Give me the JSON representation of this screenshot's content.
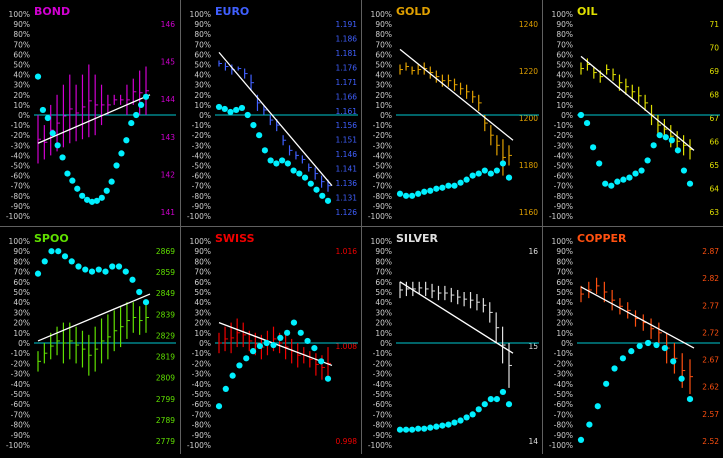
{
  "pct_ticks": [
    "100%",
    "90%",
    "80%",
    "70%",
    "60%",
    "50%",
    "40%",
    "30%",
    "20%",
    "10%",
    "0%",
    "-10%",
    "-20%",
    "-30%",
    "-40%",
    "-50%",
    "-60%",
    "-70%",
    "-80%",
    "-90%",
    "-100%"
  ],
  "colors": {
    "background": "#000000",
    "zero_line": "#00c8d0",
    "markers": "#00f0ff",
    "trend_line": "#ffffff",
    "left_axis_text": "#cfcfcf",
    "divider": "#606060"
  },
  "chart_data": [
    {
      "type": "line",
      "title": "BOND",
      "color": "#d000d0",
      "price_ticks": [
        "146",
        "145",
        "144",
        "143",
        "142",
        "141"
      ],
      "ylim": [
        -100,
        100
      ],
      "ticks": [
        [
          0.74,
          0.5
        ],
        [
          0.72,
          0.55
        ],
        [
          0.7,
          0.45
        ],
        [
          0.68,
          0.4
        ],
        [
          0.66,
          0.35
        ],
        [
          0.64,
          0.3
        ],
        [
          0.63,
          0.35
        ],
        [
          0.62,
          0.3
        ],
        [
          0.61,
          0.25
        ],
        [
          0.6,
          0.3
        ],
        [
          0.55,
          0.35
        ],
        [
          0.5,
          0.4
        ],
        [
          0.45,
          0.4
        ],
        [
          0.4,
          0.45
        ],
        [
          0.35,
          0.5
        ],
        [
          0.32,
          0.45
        ],
        [
          0.28,
          0.5
        ],
        [
          0.26,
          0.5
        ]
      ],
      "pct_values": [
        38,
        5,
        -3,
        -18,
        -30,
        -42,
        -58,
        -65,
        -73,
        -80,
        -84,
        -86,
        -85,
        -82,
        -75,
        -66,
        -50,
        -38,
        -25,
        -8,
        0,
        10,
        18
      ],
      "trend": [
        -28,
        20
      ]
    },
    {
      "type": "line",
      "title": "EURO",
      "color": "#4060ff",
      "price_ticks": [
        "1.191",
        "1.186",
        "1.181",
        "1.176",
        "1.171",
        "1.166",
        "1.161",
        "1.156",
        "1.151",
        "1.146",
        "1.141",
        "1.136",
        "1.131",
        "1.126"
      ],
      "ylim": [
        -100,
        100
      ],
      "ticks": [
        [
          0.23,
          0.26
        ],
        [
          0.24,
          0.28
        ],
        [
          0.25,
          0.3
        ],
        [
          0.26,
          0.28
        ],
        [
          0.27,
          0.32
        ],
        [
          0.3,
          0.38
        ],
        [
          0.4,
          0.48
        ],
        [
          0.45,
          0.5
        ],
        [
          0.5,
          0.55
        ],
        [
          0.52,
          0.58
        ],
        [
          0.6,
          0.65
        ],
        [
          0.65,
          0.7
        ],
        [
          0.68,
          0.72
        ],
        [
          0.7,
          0.74
        ],
        [
          0.74,
          0.78
        ],
        [
          0.76,
          0.82
        ],
        [
          0.8,
          0.86
        ],
        [
          0.82,
          0.88
        ]
      ],
      "pct_values": [
        8,
        6,
        3,
        5,
        7,
        0,
        -10,
        -20,
        -35,
        -45,
        -48,
        -45,
        -48,
        -55,
        -58,
        -62,
        -68,
        -74,
        -80,
        -85
      ],
      "trend": [
        62,
        -70
      ]
    },
    {
      "type": "line",
      "title": "GOLD",
      "color": "#e0a000",
      "price_ticks": [
        "1240",
        "1220",
        "1200",
        "1180",
        "1160"
      ],
      "ylim": [
        -100,
        100
      ],
      "ticks": [
        [
          0.25,
          0.3
        ],
        [
          0.24,
          0.28
        ],
        [
          0.26,
          0.3
        ],
        [
          0.25,
          0.3
        ],
        [
          0.24,
          0.3
        ],
        [
          0.26,
          0.32
        ],
        [
          0.28,
          0.34
        ],
        [
          0.3,
          0.36
        ],
        [
          0.3,
          0.36
        ],
        [
          0.32,
          0.38
        ],
        [
          0.34,
          0.4
        ],
        [
          0.35,
          0.42
        ],
        [
          0.38,
          0.44
        ],
        [
          0.4,
          0.48
        ],
        [
          0.5,
          0.58
        ],
        [
          0.55,
          0.65
        ],
        [
          0.6,
          0.7
        ],
        [
          0.62,
          0.8
        ],
        [
          0.65,
          0.75
        ]
      ],
      "pct_values": [
        -78,
        -80,
        -80,
        -78,
        -76,
        -75,
        -73,
        -72,
        -70,
        -70,
        -67,
        -64,
        -60,
        -58,
        -55,
        -58,
        -55,
        -48,
        -62
      ],
      "trend": [
        65,
        -25
      ]
    },
    {
      "type": "line",
      "title": "OIL",
      "color": "#e0e000",
      "price_ticks": [
        "71",
        "70",
        "69",
        "68",
        "67",
        "66",
        "65",
        "64",
        "63"
      ],
      "ylim": [
        -100,
        100
      ],
      "ticks": [
        [
          0.24,
          0.3
        ],
        [
          0.22,
          0.28
        ],
        [
          0.26,
          0.32
        ],
        [
          0.28,
          0.34
        ],
        [
          0.25,
          0.3
        ],
        [
          0.27,
          0.33
        ],
        [
          0.3,
          0.38
        ],
        [
          0.32,
          0.4
        ],
        [
          0.35,
          0.42
        ],
        [
          0.36,
          0.45
        ],
        [
          0.4,
          0.48
        ],
        [
          0.45,
          0.55
        ],
        [
          0.5,
          0.6
        ],
        [
          0.52,
          0.62
        ],
        [
          0.55,
          0.66
        ],
        [
          0.58,
          0.68
        ],
        [
          0.6,
          0.7
        ],
        [
          0.62,
          0.72
        ]
      ],
      "pct_values": [
        0,
        -8,
        -32,
        -48,
        -68,
        -70,
        -66,
        -64,
        -62,
        -58,
        -55,
        -45,
        -30,
        -20,
        -22,
        -25,
        -35,
        -55,
        -68
      ],
      "trend": [
        58,
        -35
      ]
    },
    {
      "type": "line",
      "title": "SPOO",
      "color": "#60e000",
      "price_ticks": [
        "2869",
        "2859",
        "2849",
        "2839",
        "2829",
        "2819",
        "2809",
        "2799",
        "2789",
        "2779"
      ],
      "ylim": [
        -100,
        100
      ],
      "ticks": [
        [
          0.54,
          0.64
        ],
        [
          0.5,
          0.6
        ],
        [
          0.45,
          0.58
        ],
        [
          0.42,
          0.56
        ],
        [
          0.4,
          0.6
        ],
        [
          0.4,
          0.58
        ],
        [
          0.42,
          0.6
        ],
        [
          0.44,
          0.62
        ],
        [
          0.46,
          0.66
        ],
        [
          0.42,
          0.64
        ],
        [
          0.38,
          0.6
        ],
        [
          0.36,
          0.58
        ],
        [
          0.34,
          0.54
        ],
        [
          0.32,
          0.52
        ],
        [
          0.3,
          0.48
        ],
        [
          0.3,
          0.45
        ],
        [
          0.32,
          0.46
        ],
        [
          0.3,
          0.45
        ]
      ],
      "pct_values": [
        68,
        80,
        90,
        90,
        85,
        80,
        75,
        72,
        70,
        72,
        70,
        75,
        75,
        70,
        62,
        50,
        40
      ],
      "trend": [
        2,
        48
      ]
    },
    {
      "type": "line",
      "title": "SWISS",
      "color": "#f00000",
      "price_ticks": [
        "1.016",
        "1.008",
        "0.998"
      ],
      "ylim": [
        -100,
        100
      ],
      "ticks": [
        [
          0.45,
          0.55
        ],
        [
          0.42,
          0.54
        ],
        [
          0.4,
          0.55
        ],
        [
          0.38,
          0.52
        ],
        [
          0.4,
          0.52
        ],
        [
          0.44,
          0.54
        ],
        [
          0.45,
          0.56
        ],
        [
          0.46,
          0.58
        ],
        [
          0.44,
          0.56
        ],
        [
          0.42,
          0.54
        ],
        [
          0.45,
          0.55
        ],
        [
          0.46,
          0.58
        ],
        [
          0.48,
          0.6
        ],
        [
          0.5,
          0.62
        ],
        [
          0.52,
          0.6
        ],
        [
          0.54,
          0.62
        ],
        [
          0.55,
          0.66
        ],
        [
          0.56,
          0.68
        ],
        [
          0.52,
          0.68
        ]
      ],
      "pct_values": [
        -62,
        -45,
        -32,
        -22,
        -15,
        -8,
        -3,
        0,
        -2,
        5,
        10,
        20,
        10,
        2,
        -5,
        -18,
        -35
      ],
      "trend": [
        20,
        -22
      ]
    },
    {
      "type": "line",
      "title": "SILVER",
      "color": "#e0e0e0",
      "price_ticks": [
        "16",
        "15",
        "14"
      ],
      "ylim": [
        -100,
        100
      ],
      "ticks": [
        [
          0.2,
          0.28
        ],
        [
          0.2,
          0.27
        ],
        [
          0.2,
          0.27
        ],
        [
          0.2,
          0.26
        ],
        [
          0.2,
          0.27
        ],
        [
          0.21,
          0.28
        ],
        [
          0.22,
          0.29
        ],
        [
          0.22,
          0.29
        ],
        [
          0.23,
          0.3
        ],
        [
          0.24,
          0.31
        ],
        [
          0.25,
          0.32
        ],
        [
          0.25,
          0.33
        ],
        [
          0.26,
          0.34
        ],
        [
          0.28,
          0.35
        ],
        [
          0.3,
          0.4
        ],
        [
          0.35,
          0.5
        ],
        [
          0.42,
          0.6
        ],
        [
          0.5,
          0.72
        ]
      ],
      "pct_values": [
        -85,
        -85,
        -85,
        -84,
        -84,
        -83,
        -82,
        -81,
        -80,
        -78,
        -76,
        -73,
        -70,
        -65,
        -60,
        -55,
        -55,
        -48,
        -60
      ],
      "trend": [
        60,
        -10
      ]
    },
    {
      "type": "line",
      "title": "COPPER",
      "color": "#ff5010",
      "price_ticks": [
        "2.87",
        "2.82",
        "2.77",
        "2.72",
        "2.67",
        "2.62",
        "2.57",
        "2.52"
      ],
      "ylim": [
        -100,
        100
      ],
      "ticks": [
        [
          0.22,
          0.3
        ],
        [
          0.2,
          0.28
        ],
        [
          0.18,
          0.26
        ],
        [
          0.2,
          0.3
        ],
        [
          0.24,
          0.34
        ],
        [
          0.28,
          0.36
        ],
        [
          0.3,
          0.38
        ],
        [
          0.34,
          0.42
        ],
        [
          0.36,
          0.44
        ],
        [
          0.38,
          0.48
        ],
        [
          0.4,
          0.5
        ],
        [
          0.45,
          0.6
        ],
        [
          0.5,
          0.65
        ],
        [
          0.55,
          0.72
        ],
        [
          0.58,
          0.75
        ]
      ],
      "pct_values": [
        -95,
        -80,
        -62,
        -40,
        -25,
        -15,
        -8,
        -3,
        0,
        -2,
        -5,
        -18,
        -35,
        -55
      ],
      "trend": [
        55,
        -5
      ]
    }
  ]
}
